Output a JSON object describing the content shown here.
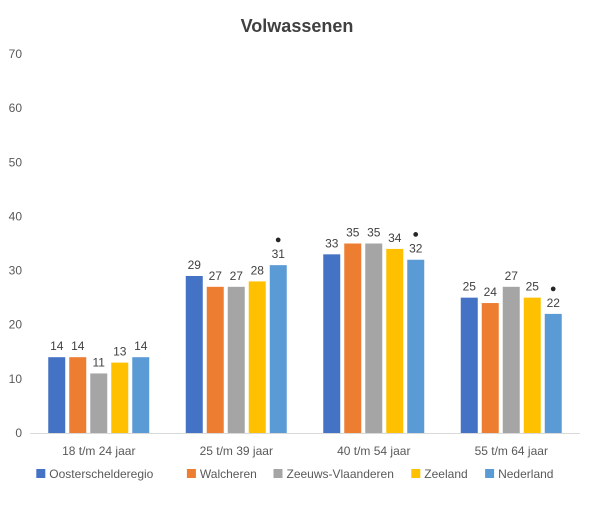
{
  "chart_data": {
    "type": "bar",
    "title": "Volwassenen",
    "xlabel": "",
    "ylabel": "",
    "ylim": [
      0,
      70
    ],
    "yticks": [
      0,
      10,
      20,
      30,
      40,
      50,
      60,
      70
    ],
    "grid": false,
    "legend_position": "bottom",
    "categories": [
      "18 t/m 24 jaar",
      "25 t/m 39 jaar",
      "40 t/m 54 jaar",
      "55 t/m 64 jaar"
    ],
    "series": [
      {
        "name": "Oosterscheldereg​io",
        "color": "#4472C4",
        "values": [
          14,
          29,
          33,
          25
        ],
        "labels": [
          "14",
          "29",
          "33",
          "25"
        ]
      },
      {
        "name": "Walcheren",
        "color": "#ED7D31",
        "values": [
          14,
          27,
          35,
          24
        ],
        "labels": [
          "14",
          "27",
          "35",
          "24"
        ]
      },
      {
        "name": "Zeeuws-Vlaanderen",
        "color": "#A5A5A5",
        "values": [
          11,
          27,
          35,
          27
        ],
        "labels": [
          "11",
          "27",
          "35",
          "27"
        ]
      },
      {
        "name": "Zeeland",
        "color": "#FFC000",
        "values": [
          13,
          28,
          34,
          25
        ],
        "labels": [
          "13",
          "28",
          "34",
          "25"
        ]
      },
      {
        "name": "Nederland",
        "color": "#5B9BD5",
        "values": [
          14,
          31,
          32,
          22
        ],
        "labels": [
          "14",
          "31",
          "32",
          "22"
        ]
      }
    ],
    "markers": [
      {
        "series": "Nederland",
        "category": "25 t/m 39 jaar",
        "symbol": "●"
      },
      {
        "series": "Nederland",
        "category": "40 t/m 54 jaar",
        "symbol": "●"
      },
      {
        "series": "Nederland",
        "category": "55 t/m 64 jaar",
        "symbol": "●"
      }
    ]
  }
}
